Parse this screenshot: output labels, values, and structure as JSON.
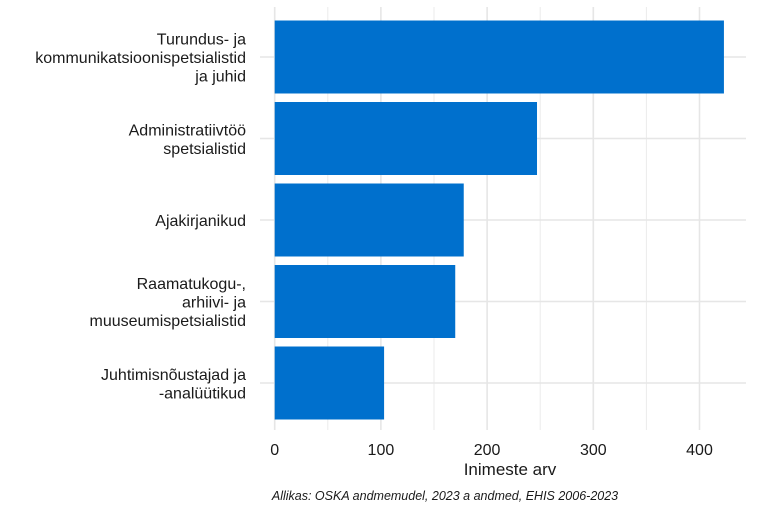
{
  "chart_data": {
    "type": "bar",
    "orientation": "horizontal",
    "categories": [
      [
        "Turundus- ja",
        "kommunikatsioonispetsialistid",
        "ja juhid"
      ],
      [
        "Administratiivtöö",
        "spetsialistid"
      ],
      [
        "Ajakirjanikud"
      ],
      [
        "Raamatukogu-,",
        "arhiivi- ja",
        "muuseumispetsialistid"
      ],
      [
        "Juhtimisnõustajad ja",
        "-analüütikud"
      ]
    ],
    "values": [
      423,
      247,
      178,
      170,
      103
    ],
    "xlabel": "Inimeste arv",
    "ylabel": "",
    "xlim": [
      0,
      444
    ],
    "xticks": [
      "0",
      "100",
      "200",
      "300",
      "400"
    ],
    "xtick_values": [
      0,
      100,
      200,
      300,
      400
    ],
    "grid": true,
    "bar_color": "#0070CD",
    "caption": "Allikas: OSKA andmemudel, 2023 a andmed, EHIS 2006-2023"
  }
}
